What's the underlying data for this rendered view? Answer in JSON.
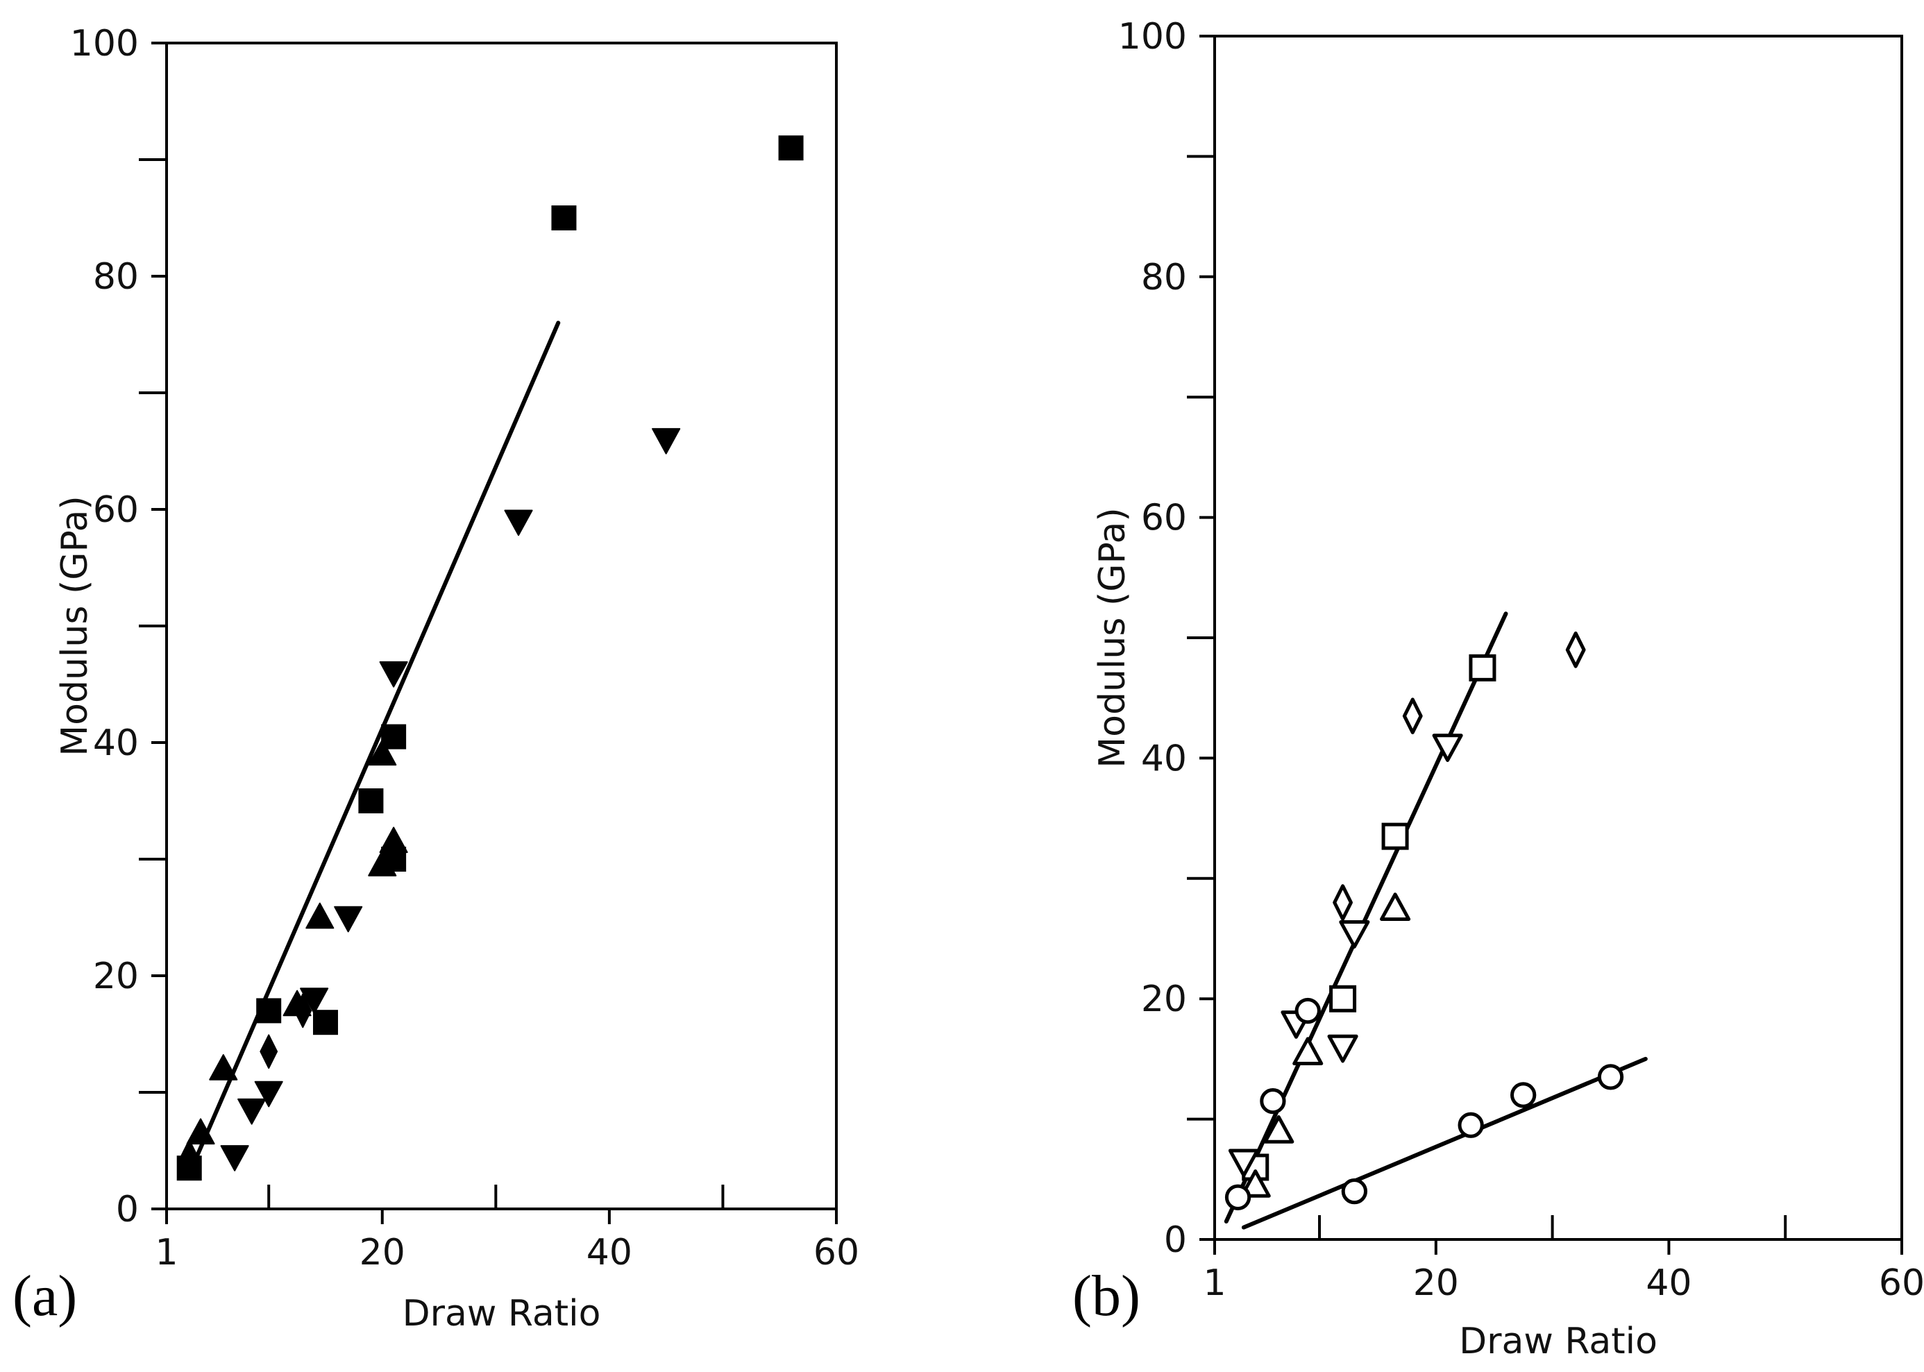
{
  "chart_data": [
    {
      "type": "scatter",
      "panel_label": "(a)",
      "xlabel": "Draw Ratio",
      "ylabel": "Modulus (GPa)",
      "xlim": [
        1,
        60
      ],
      "ylim": [
        0,
        100
      ],
      "x_ticks": [
        1,
        20,
        40,
        60
      ],
      "x_minor_ticks": [
        10,
        30,
        50
      ],
      "y_ticks": [
        0,
        20,
        40,
        60,
        80,
        100
      ],
      "y_minor_ticks": [
        10,
        30,
        50,
        70,
        90
      ],
      "filled_markers": true,
      "series": [
        {
          "marker": "square",
          "points": [
            [
              3,
              3.5
            ],
            [
              10,
              17
            ],
            [
              15,
              16
            ],
            [
              19,
              35
            ],
            [
              21,
              40.5
            ],
            [
              21,
              30
            ],
            [
              36,
              85
            ],
            [
              56,
              91
            ]
          ]
        },
        {
          "marker": "triangle-up",
          "points": [
            [
              4,
              6.5
            ],
            [
              6,
              12
            ],
            [
              12.5,
              17.5
            ],
            [
              14.5,
              25
            ],
            [
              20,
              39
            ],
            [
              21,
              31.5
            ],
            [
              20,
              29.5
            ]
          ]
        },
        {
          "marker": "triangle-down",
          "points": [
            [
              7,
              4.5
            ],
            [
              8.5,
              8.5
            ],
            [
              10,
              10
            ],
            [
              14,
              18
            ],
            [
              17,
              25
            ],
            [
              21,
              46
            ],
            [
              32,
              59
            ],
            [
              45,
              66
            ]
          ]
        },
        {
          "marker": "diamond",
          "points": [
            [
              3,
              4.5
            ],
            [
              10,
              13.5
            ],
            [
              13,
              17
            ]
          ]
        }
      ],
      "fit_lines": [
        {
          "from": [
            3,
            3
          ],
          "to": [
            35.5,
            76
          ]
        }
      ]
    },
    {
      "type": "scatter",
      "panel_label": "(b)",
      "xlabel": "Draw Ratio",
      "ylabel": "Modulus (GPa)",
      "xlim": [
        1,
        60
      ],
      "ylim": [
        0,
        100
      ],
      "x_ticks": [
        1,
        20,
        40,
        60
      ],
      "x_minor_ticks": [
        10,
        30,
        50
      ],
      "y_ticks": [
        0,
        20,
        40,
        60,
        80,
        100
      ],
      "y_minor_ticks": [
        10,
        30,
        50,
        70,
        90
      ],
      "filled_markers": false,
      "series": [
        {
          "marker": "square",
          "points": [
            [
              4.5,
              6
            ],
            [
              12,
              20
            ],
            [
              16.5,
              33.5
            ],
            [
              24,
              47.5
            ]
          ]
        },
        {
          "marker": "triangle-up",
          "points": [
            [
              4.5,
              4.5
            ],
            [
              6.5,
              9
            ],
            [
              9,
              15.5
            ],
            [
              16.5,
              27.5
            ]
          ]
        },
        {
          "marker": "triangle-down",
          "points": [
            [
              3.5,
              6.5
            ],
            [
              8,
              18
            ],
            [
              12,
              16
            ],
            [
              13,
              25.5
            ],
            [
              21,
              41
            ]
          ]
        },
        {
          "marker": "diamond",
          "points": [
            [
              12,
              28
            ],
            [
              18,
              43.5
            ],
            [
              32,
              49
            ]
          ]
        },
        {
          "marker": "circle",
          "points": [
            [
              3,
              3.5
            ],
            [
              6,
              11.5
            ],
            [
              9,
              19
            ],
            [
              13,
              4
            ],
            [
              23,
              9.5
            ],
            [
              27.5,
              12
            ],
            [
              35,
              13.5
            ]
          ]
        }
      ],
      "fit_lines": [
        {
          "from": [
            2,
            1.5
          ],
          "to": [
            26,
            52
          ]
        },
        {
          "from": [
            3.5,
            1
          ],
          "to": [
            38,
            15
          ]
        }
      ]
    }
  ]
}
